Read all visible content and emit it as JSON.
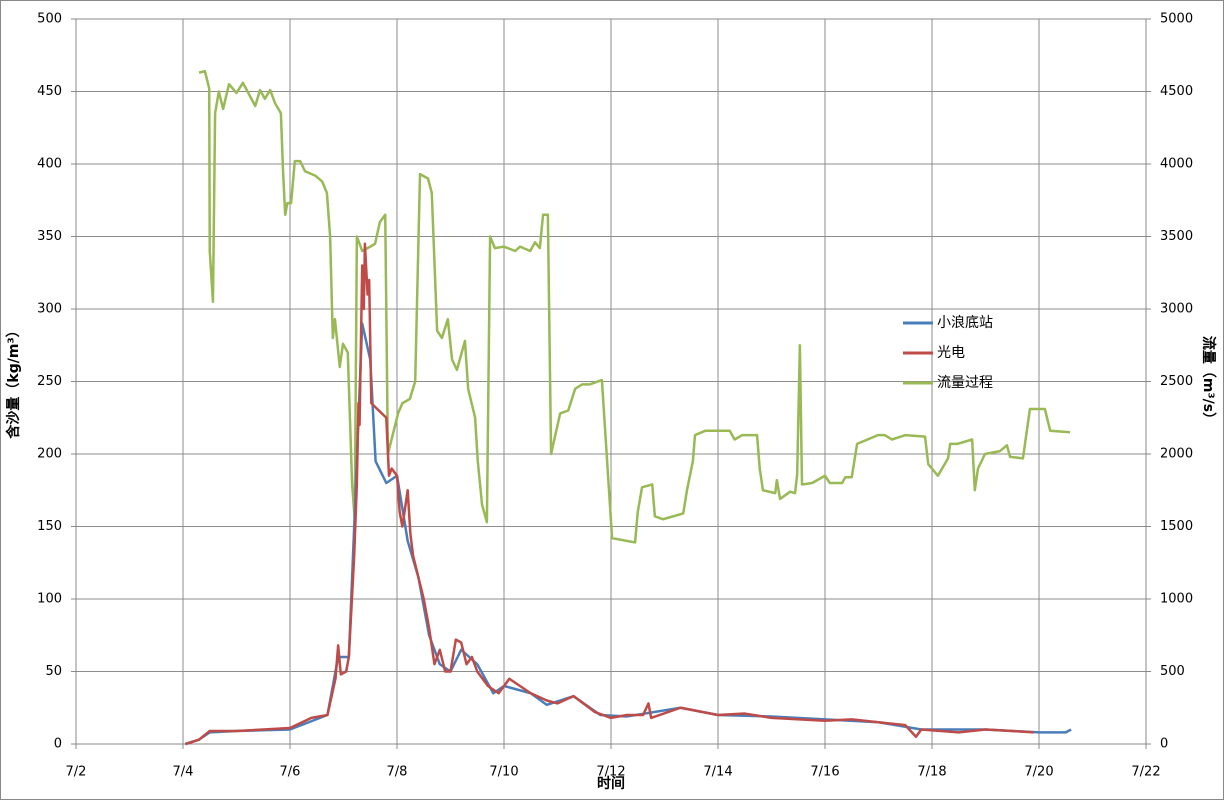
{
  "chart_data": {
    "type": "line",
    "x_label": "时间",
    "y_label": "含沙量（kg/m³）",
    "y2_label": "流量（m³/s）",
    "xlim": [
      2,
      22
    ],
    "xticks": [
      {
        "value": 2,
        "label": "7/2"
      },
      {
        "value": 4,
        "label": "7/4"
      },
      {
        "value": 6,
        "label": "7/6"
      },
      {
        "value": 8,
        "label": "7/8"
      },
      {
        "value": 10,
        "label": "7/10"
      },
      {
        "value": 12,
        "label": "7/12"
      },
      {
        "value": 14,
        "label": "7/14"
      },
      {
        "value": 16,
        "label": "7/16"
      },
      {
        "value": 18,
        "label": "7/18"
      },
      {
        "value": 20,
        "label": "7/20"
      },
      {
        "value": 22,
        "label": "7/22"
      }
    ],
    "ylim": [
      0,
      500
    ],
    "yticks": [
      0,
      50,
      100,
      150,
      200,
      250,
      300,
      350,
      400,
      450,
      500
    ],
    "y2lim": [
      0,
      5000
    ],
    "y2ticks": [
      0,
      500,
      1000,
      1500,
      2000,
      2500,
      3000,
      3500,
      4000,
      4500,
      5000
    ],
    "grid": true,
    "legend": "right",
    "series": [
      {
        "name": "小浪底站",
        "color": "#4a7ebb",
        "x": [
          4.04,
          4.3,
          4.5,
          5,
          6,
          6.7,
          6.9,
          7.1,
          7.2,
          7.35,
          7.5,
          7.6,
          7.8,
          8,
          8.2,
          8.4,
          8.6,
          8.8,
          9,
          9.2,
          9.5,
          9.8,
          10,
          10.5,
          10.8,
          11.3,
          11.8,
          12.3,
          13.3,
          14,
          15,
          16,
          17,
          17.8,
          19,
          20,
          20.5,
          20.6
        ],
        "values": [
          0,
          3,
          8,
          9,
          10,
          20,
          60,
          60,
          150,
          290,
          265,
          195,
          180,
          185,
          140,
          115,
          75,
          55,
          50,
          65,
          55,
          35,
          40,
          35,
          27,
          33,
          20,
          19,
          25,
          20,
          19,
          17,
          15,
          10,
          10,
          8,
          8,
          10
        ]
      },
      {
        "name": "光电",
        "color": "#be4b48",
        "x": [
          4.05,
          4.3,
          4.5,
          5,
          5.5,
          6,
          6.4,
          6.7,
          6.85,
          6.9,
          6.95,
          7.05,
          7.1,
          7.2,
          7.25,
          7.28,
          7.3,
          7.35,
          7.38,
          7.4,
          7.45,
          7.48,
          7.52,
          7.8,
          7.85,
          7.9,
          8,
          8.05,
          8.1,
          8.2,
          8.25,
          8.3,
          8.5,
          8.6,
          8.7,
          8.8,
          8.9,
          9,
          9.1,
          9.2,
          9.3,
          9.4,
          9.5,
          9.7,
          9.9,
          10.1,
          10.3,
          10.5,
          10.8,
          11,
          11.3,
          11.7,
          12,
          12.3,
          12.6,
          12.7,
          12.75,
          13.3,
          14,
          14.5,
          15,
          16,
          16.5,
          17,
          17.5,
          17.7,
          17.8,
          18.5,
          19,
          19.5,
          19.9
        ],
        "values": [
          0,
          3,
          9,
          9,
          10,
          11,
          18,
          20,
          45,
          68,
          48,
          50,
          60,
          130,
          180,
          235,
          220,
          330,
          300,
          345,
          310,
          320,
          235,
          225,
          185,
          190,
          185,
          160,
          150,
          175,
          145,
          130,
          100,
          80,
          55,
          65,
          50,
          50,
          72,
          70,
          55,
          60,
          50,
          40,
          35,
          45,
          40,
          35,
          30,
          28,
          33,
          22,
          18,
          20,
          20,
          28,
          18,
          25,
          20,
          21,
          18,
          16,
          17,
          15,
          13,
          5,
          10,
          8,
          10,
          9,
          8
        ]
      },
      {
        "name": "流量过程",
        "color": "#98b954",
        "axis": "y2",
        "x": [
          4.3,
          4.41,
          4.49,
          4.5,
          4.56,
          4.6,
          4.67,
          4.75,
          4.86,
          5,
          5.12,
          5.35,
          5.44,
          5.53,
          5.63,
          5.72,
          5.83,
          5.87,
          5.91,
          5.95,
          6.02,
          6.09,
          6.19,
          6.28,
          6.47,
          6.6,
          6.69,
          6.75,
          6.8,
          6.84,
          6.93,
          6.99,
          7.08,
          7.16,
          7.21,
          7.25,
          7.35,
          7.5,
          7.59,
          7.68,
          7.78,
          7.83,
          8.02,
          8.1,
          8.24,
          8.34,
          8.43,
          8.58,
          8.65,
          8.75,
          8.84,
          8.95,
          9.03,
          9.12,
          9.27,
          9.33,
          9.46,
          9.51,
          9.59,
          9.68,
          9.74,
          9.83,
          10,
          10.21,
          10.3,
          10.49,
          10.58,
          10.67,
          10.73,
          10.82,
          10.88,
          11.05,
          11.2,
          11.33,
          11.46,
          11.6,
          11.83,
          12.02,
          12.45,
          12.5,
          12.58,
          12.77,
          12.82,
          12.97,
          13.35,
          13.42,
          13.53,
          13.57,
          13.76,
          14.22,
          14.31,
          14.45,
          14.73,
          14.78,
          14.84,
          15.07,
          15.1,
          15.16,
          15.35,
          15.44,
          15.48,
          15.53,
          15.57,
          15.76,
          16,
          16.09,
          16.32,
          16.38,
          16.5,
          16.6,
          16.99,
          17.12,
          17.25,
          17.5,
          17.87,
          17.93,
          18.11,
          18.3,
          18.34,
          18.48,
          18.75,
          18.8,
          18.86,
          18.99,
          19.27,
          19.4,
          19.46,
          19.7,
          19.83,
          20.11,
          20.21,
          20.58
        ],
        "values": [
          4630,
          4640,
          4520,
          3400,
          3050,
          4350,
          4500,
          4380,
          4550,
          4490,
          4560,
          4400,
          4510,
          4450,
          4510,
          4420,
          4350,
          3950,
          3650,
          3730,
          3730,
          4020,
          4020,
          3950,
          3920,
          3880,
          3800,
          3500,
          2800,
          2930,
          2600,
          2760,
          2700,
          1800,
          1550,
          3500,
          3400,
          3430,
          3450,
          3600,
          3650,
          2000,
          2280,
          2350,
          2380,
          2500,
          3930,
          3900,
          3800,
          2850,
          2800,
          2930,
          2650,
          2580,
          2780,
          2450,
          2250,
          1950,
          1650,
          1530,
          3500,
          3420,
          3430,
          3400,
          3430,
          3400,
          3460,
          3420,
          3650,
          3650,
          2000,
          2280,
          2300,
          2450,
          2480,
          2480,
          2510,
          1420,
          1390,
          1600,
          1770,
          1790,
          1570,
          1550,
          1590,
          1750,
          1950,
          2130,
          2160,
          2160,
          2100,
          2130,
          2130,
          1900,
          1750,
          1730,
          1820,
          1690,
          1740,
          1730,
          1860,
          2750,
          1790,
          1800,
          1850,
          1800,
          1800,
          1840,
          1840,
          2070,
          2130,
          2130,
          2100,
          2130,
          2120,
          1930,
          1850,
          1970,
          2070,
          2070,
          2100,
          1750,
          1900,
          2000,
          2020,
          2060,
          1980,
          1970,
          2310,
          2310,
          2160,
          2150
        ]
      }
    ]
  }
}
